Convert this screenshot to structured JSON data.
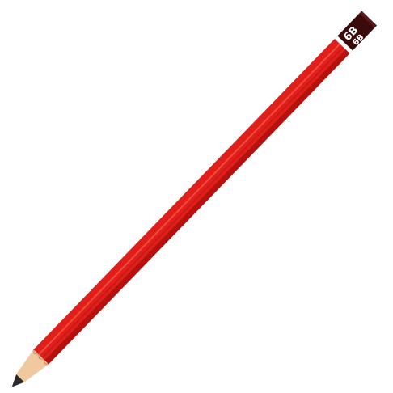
{
  "pencil": {
    "grade_label_large": "6B",
    "grade_label_small": "6B",
    "body_color": "#e01f1a",
    "body_shadow_color": "#b3120e",
    "body_highlight_color": "#f14a3f",
    "end_cap_color": "#3b0b0b",
    "wood_color": "#f0c9a0",
    "lead_color": "#2a2a2a"
  }
}
